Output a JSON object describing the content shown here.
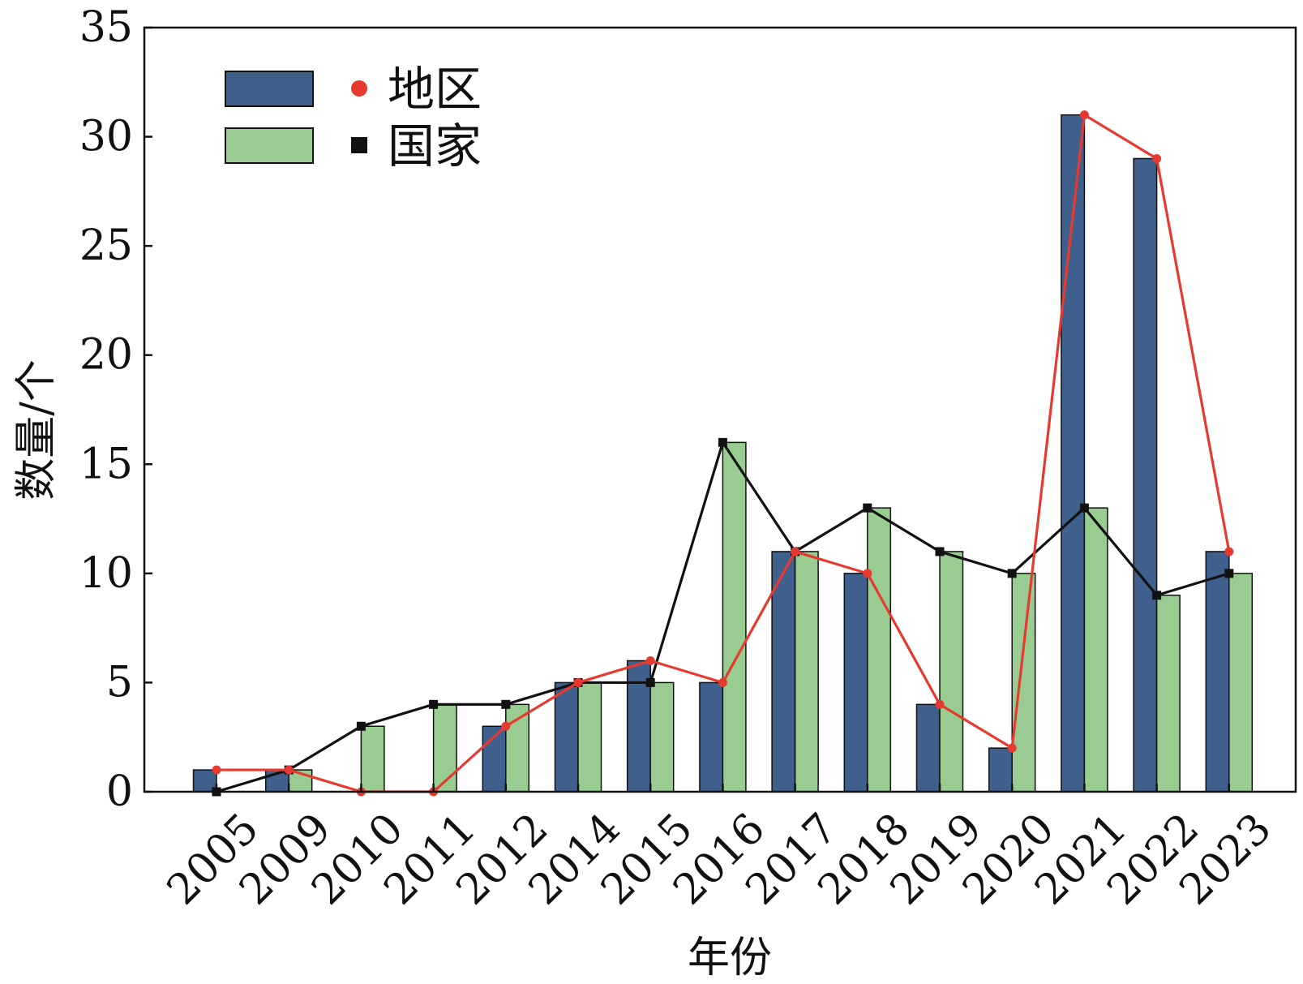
{
  "chart_data": {
    "type": "bar",
    "xlabel": "年份",
    "ylabel": "数量/个",
    "ylim": [
      0,
      35
    ],
    "yticks": [
      0,
      5,
      10,
      15,
      20,
      25,
      30,
      35
    ],
    "grid": false,
    "legend_position": "top-left",
    "categories": [
      "2005",
      "2009",
      "2010",
      "2011",
      "2012",
      "2014",
      "2015",
      "2016",
      "2017",
      "2018",
      "2019",
      "2020",
      "2021",
      "2022",
      "2023"
    ],
    "series": [
      {
        "name": "地区",
        "kind": "bar+line",
        "bar_color": "#3f5f8c",
        "line_color": "#e63a30",
        "marker": "circle",
        "values": [
          1,
          1,
          0,
          0,
          3,
          5,
          6,
          5,
          11,
          10,
          4,
          2,
          31,
          29,
          11
        ]
      },
      {
        "name": "国家",
        "kind": "bar+line",
        "bar_color": "#99cc91",
        "line_color": "#111111",
        "marker": "square",
        "values": [
          0,
          1,
          3,
          4,
          4,
          5,
          5,
          16,
          11,
          13,
          11,
          10,
          13,
          9,
          10
        ]
      }
    ]
  }
}
